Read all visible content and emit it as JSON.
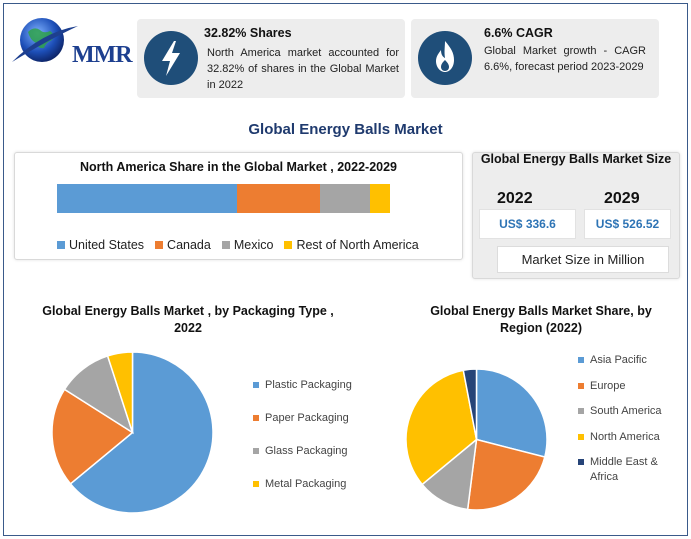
{
  "brand": {
    "logo_text": "MMR"
  },
  "cards": [
    {
      "title": "32.82% Shares",
      "text": "North America market accounted for 32.82% of shares in the Global Market in 2022",
      "icon": "lightning-icon"
    },
    {
      "title": "6.6% CAGR",
      "text": "Global Market growth - CAGR 6.6%, forecast period 2023-2029",
      "icon": "flame-icon"
    }
  ],
  "main_title": "Global Energy Balls Market",
  "size_panel": {
    "title": "Global Energy Balls Market Size",
    "year_a": "2022",
    "year_b": "2029",
    "value_a": "US$ 336.6",
    "value_b": "US$ 526.52",
    "unit_label": "Market Size in Million"
  },
  "colors": {
    "blue": "#5b9bd5",
    "orange": "#ed7d31",
    "gray": "#a5a5a5",
    "yellow": "#ffc000",
    "dark_blue": "#264478",
    "accent": "#1f4e79"
  },
  "chart_data": [
    {
      "type": "bar",
      "title": "North America Share in the Global Market , 2022-2029",
      "stacked": true,
      "orientation": "horizontal",
      "series": [
        {
          "name": "United States",
          "value": 54,
          "color": "#5b9bd5"
        },
        {
          "name": "Canada",
          "value": 25,
          "color": "#ed7d31"
        },
        {
          "name": "Mexico",
          "value": 15,
          "color": "#a5a5a5"
        },
        {
          "name": "Rest of North America",
          "value": 6,
          "color": "#ffc000"
        }
      ],
      "legend": "bottom"
    },
    {
      "type": "pie",
      "title": "Global Energy Balls Market ,  by Packaging Type , 2022",
      "categories": [
        "Plastic Packaging",
        "Paper Packaging",
        "Glass Packaging",
        "Metal Packaging"
      ],
      "values": [
        64,
        20,
        11,
        5
      ],
      "colors": [
        "#5b9bd5",
        "#ed7d31",
        "#a5a5a5",
        "#ffc000"
      ],
      "legend": "right"
    },
    {
      "type": "pie",
      "title": "Global Energy Balls Market  Share, by Region (2022)",
      "categories": [
        "Asia Pacific",
        "Europe",
        "South America",
        "North America",
        "Middle East & Africa"
      ],
      "values": [
        29,
        23,
        12,
        33,
        3
      ],
      "colors": [
        "#5b9bd5",
        "#ed7d31",
        "#a5a5a5",
        "#ffc000",
        "#264478"
      ],
      "legend": "right"
    }
  ]
}
